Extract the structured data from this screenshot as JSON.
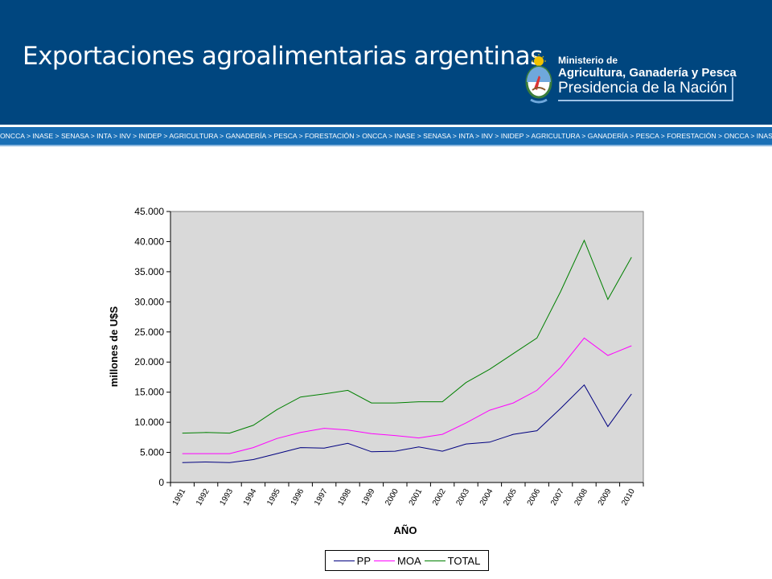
{
  "header": {
    "title": "Exportaciones agroalimentarias argentinas",
    "background": "#00467f"
  },
  "logo": {
    "line1": "Ministerio de",
    "line2": "Agricultura, Ganadería y Pesca",
    "line3": "Presidencia de la Nación",
    "icon": "argentina-coat-of-arms-icon"
  },
  "ticker": {
    "text": "ONCCA > INASE > SENASA > INTA > INV > INIDEP > AGRICULTURA > GANADERÍA > PESCA > FORESTACIÓN > ONCCA > INASE > SENASA > INTA > INV > INIDEP > AGRICULTURA > GANADERÍA > PESCA > FORESTACIÓN > ONCCA > INASE > SENASA",
    "background": "#1a6fb5"
  },
  "chart_data": {
    "type": "line",
    "title": "",
    "xlabel": "AÑO",
    "ylabel": "millones de U$S",
    "ylim": [
      0,
      45000
    ],
    "yticks": [
      "0",
      "5.000",
      "10.000",
      "15.000",
      "20.000",
      "25.000",
      "30.000",
      "35.000",
      "40.000",
      "45.000"
    ],
    "ytick_values": [
      0,
      5000,
      10000,
      15000,
      20000,
      25000,
      30000,
      35000,
      40000,
      45000
    ],
    "categories": [
      "1991",
      "1992",
      "1993",
      "1994",
      "1995",
      "1996",
      "1997",
      "1998",
      "1999",
      "2000",
      "2001",
      "2002",
      "2003",
      "2004",
      "2005",
      "2006",
      "2007",
      "2008",
      "2009",
      "2010"
    ],
    "plot_background": "#d9d9d9",
    "grid": false,
    "legend_position": "bottom",
    "series": [
      {
        "name": "PP",
        "color": "#000080",
        "values": [
          3300,
          3400,
          3300,
          3800,
          4800,
          5800,
          5700,
          6500,
          5100,
          5200,
          5900,
          5200,
          6400,
          6700,
          8000,
          8600,
          12300,
          16200,
          9300,
          14700
        ]
      },
      {
        "name": "MOA",
        "color": "#ff00ff",
        "values": [
          4800,
          4800,
          4800,
          5800,
          7300,
          8300,
          9000,
          8700,
          8100,
          7800,
          7400,
          8000,
          9900,
          12000,
          13200,
          15300,
          19100,
          24000,
          21100,
          22700
        ]
      },
      {
        "name": "TOTAL",
        "color": "#008000",
        "values": [
          8200,
          8300,
          8200,
          9500,
          12100,
          14200,
          14700,
          15300,
          13200,
          13200,
          13400,
          13400,
          16600,
          18800,
          21400,
          24000,
          31700,
          40200,
          30400,
          37400
        ]
      }
    ]
  }
}
